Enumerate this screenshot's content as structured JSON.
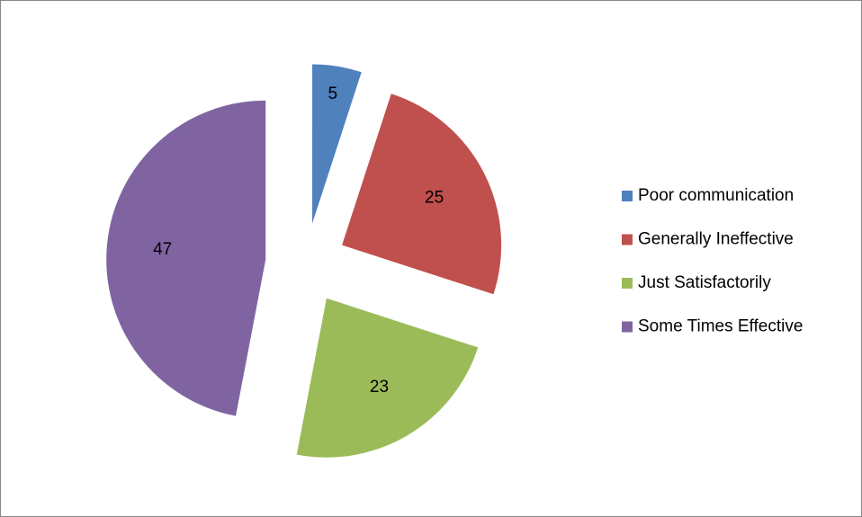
{
  "chart_data": {
    "type": "pie",
    "categories": [
      "Poor communication",
      "Generally Ineffective",
      "Just Satisfactorily",
      "Some Times Effective"
    ],
    "values": [
      5,
      25,
      23,
      47
    ],
    "colors": [
      "#4f81bd",
      "#c0504d",
      "#9bbb59",
      "#8064a2"
    ],
    "legend": "right"
  }
}
